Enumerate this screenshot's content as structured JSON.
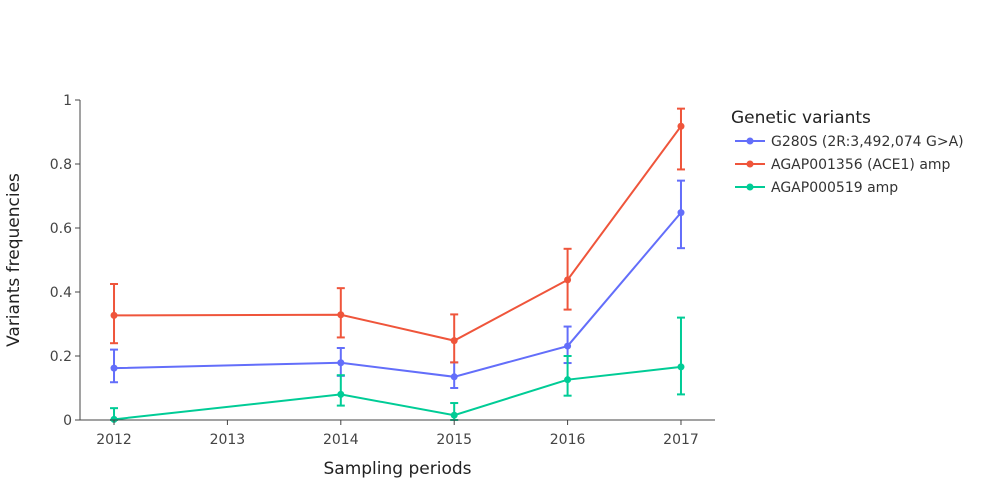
{
  "chart_data": {
    "type": "line",
    "xlabel": "Sampling periods",
    "ylabel": "Variants frequencies",
    "legend_title": "Genetic variants",
    "legend_position": "right",
    "x_ticks": [
      "2012",
      "2013",
      "2014",
      "2015",
      "2016",
      "2017"
    ],
    "y_ticks": [
      "0",
      "0.2",
      "0.4",
      "0.6",
      "0.8",
      "1"
    ],
    "xlim": [
      2011.7,
      2017.3
    ],
    "ylim": [
      0,
      1
    ],
    "grid": false,
    "series": [
      {
        "name": "G280S (2R:3,492,074 G>A)",
        "color": "#636efa",
        "x": [
          2012,
          2014,
          2015,
          2016,
          2017
        ],
        "y": [
          0.162,
          0.179,
          0.135,
          0.231,
          0.648
        ],
        "error_low": [
          0.118,
          0.138,
          0.1,
          0.178,
          0.537
        ],
        "error_high": [
          0.22,
          0.225,
          0.18,
          0.292,
          0.748
        ]
      },
      {
        "name": "AGAP001356 (ACE1) amp",
        "color": "#ef553b",
        "x": [
          2012,
          2014,
          2015,
          2016,
          2017
        ],
        "y": [
          0.327,
          0.329,
          0.248,
          0.438,
          0.918
        ],
        "error_low": [
          0.24,
          0.258,
          0.18,
          0.345,
          0.783
        ],
        "error_high": [
          0.425,
          0.412,
          0.33,
          0.535,
          0.973
        ]
      },
      {
        "name": "AGAP000519 amp",
        "color": "#00cc96",
        "x": [
          2012,
          2014,
          2015,
          2016,
          2017
        ],
        "y": [
          0.002,
          0.08,
          0.015,
          0.126,
          0.166
        ],
        "error_low": [
          0.0,
          0.045,
          0.0,
          0.076,
          0.08
        ],
        "error_high": [
          0.037,
          0.14,
          0.053,
          0.2,
          0.32
        ]
      }
    ]
  }
}
